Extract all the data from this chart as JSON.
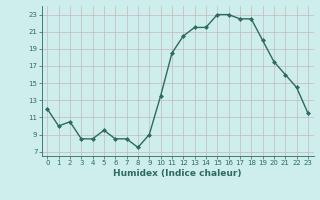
{
  "x": [
    0,
    1,
    2,
    3,
    4,
    5,
    6,
    7,
    8,
    9,
    10,
    11,
    12,
    13,
    14,
    15,
    16,
    17,
    18,
    19,
    20,
    21,
    22,
    23
  ],
  "y": [
    12,
    10,
    10.5,
    8.5,
    8.5,
    9.5,
    8.5,
    8.5,
    7.5,
    9,
    13.5,
    18.5,
    20.5,
    21.5,
    21.5,
    23,
    23,
    22.5,
    22.5,
    20,
    17.5,
    16,
    14.5,
    11.5
  ],
  "line_color": "#2d6b5e",
  "marker": "D",
  "marker_size": 2,
  "bg_color": "#cdeeed",
  "grid_color": "#c8b8b8",
  "xlabel": "Humidex (Indice chaleur)",
  "xlim": [
    -0.5,
    23.5
  ],
  "ylim": [
    6.5,
    24
  ],
  "yticks": [
    7,
    9,
    11,
    13,
    15,
    17,
    19,
    21,
    23
  ],
  "xticks": [
    0,
    1,
    2,
    3,
    4,
    5,
    6,
    7,
    8,
    9,
    10,
    11,
    12,
    13,
    14,
    15,
    16,
    17,
    18,
    19,
    20,
    21,
    22,
    23
  ],
  "tick_color": "#2d6b5e",
  "label_color": "#2d6b5e",
  "tick_fontsize": 5.0,
  "xlabel_fontsize": 6.5,
  "linewidth": 1.0
}
